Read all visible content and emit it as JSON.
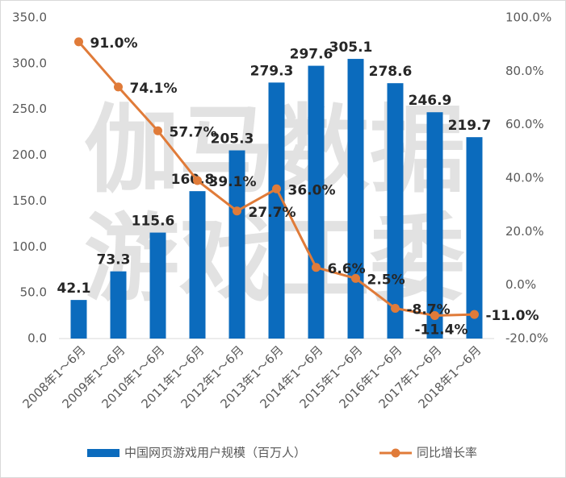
{
  "chart_data": {
    "type": "bar-line",
    "watermark": [
      "伽马数据",
      "游戏工委"
    ],
    "categories": [
      "2008年1～6月",
      "2009年1～6月",
      "2010年1～6月",
      "2011年1～6月",
      "2012年1～6月",
      "2013年1～6月",
      "2014年1～6月",
      "2015年1～6月",
      "2016年1～6月",
      "2017年1～6月",
      "2018年1～6月"
    ],
    "series": [
      {
        "name": "中国网页游戏用户规模（百万人）",
        "type": "bar",
        "color": "#0b6bbd",
        "values": [
          42.1,
          73.3,
          115.6,
          160.8,
          205.3,
          279.3,
          297.6,
          305.1,
          278.6,
          246.9,
          219.7
        ]
      },
      {
        "name": "同比增长率",
        "type": "line",
        "axis": "y2",
        "color": "#e07b39",
        "values": [
          91.0,
          74.1,
          57.7,
          39.1,
          27.7,
          36.0,
          6.6,
          2.5,
          -8.7,
          -11.4,
          -11.0
        ],
        "value_labels": [
          "91.0%",
          "74.1%",
          "57.7%",
          "39.1%",
          "27.7%",
          "36.0%",
          "6.6%",
          "2.5%",
          "-8.7%",
          "-11.4%",
          "-11.0%"
        ]
      }
    ],
    "ylim": [
      0,
      350
    ],
    "yticks": [
      {
        "value": 0,
        "label": "0.0"
      },
      {
        "value": 50,
        "label": "50.0"
      },
      {
        "value": 100,
        "label": "100.0"
      },
      {
        "value": 150,
        "label": "150.0"
      },
      {
        "value": 200,
        "label": "200.0"
      },
      {
        "value": 250,
        "label": "250.0"
      },
      {
        "value": 300,
        "label": "300.0"
      },
      {
        "value": 350,
        "label": "350.0"
      }
    ],
    "y2lim": [
      -20,
      100
    ],
    "y2ticks": [
      {
        "value": -20,
        "label": "-20.0%"
      },
      {
        "value": 0,
        "label": "0.0%"
      },
      {
        "value": 20,
        "label": "20.0%"
      },
      {
        "value": 40,
        "label": "40.0%"
      },
      {
        "value": 60,
        "label": "60.0%"
      },
      {
        "value": 80,
        "label": "80.0%"
      },
      {
        "value": 100,
        "label": "100.0%"
      }
    ],
    "legend": "bottom"
  }
}
